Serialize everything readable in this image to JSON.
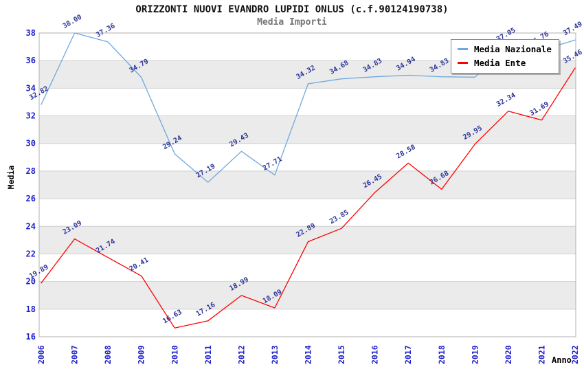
{
  "header": {
    "title": "ORIZZONTI NUOVI EVANDRO LUPIDI ONLUS (c.f.90124190738)",
    "subtitle": "Media Importi"
  },
  "legend": {
    "items": [
      {
        "label": "Media Nazionale",
        "color": "#6fa8dc"
      },
      {
        "label": "Media Ente",
        "color": "#ff0000"
      }
    ]
  },
  "chart_data": {
    "type": "line",
    "title": "ORIZZONTI NUOVI EVANDRO LUPIDI ONLUS (c.f.90124190738)",
    "subtitle": "Media Importi",
    "x": [
      2006,
      2007,
      2008,
      2009,
      2010,
      2011,
      2012,
      2013,
      2014,
      2015,
      2016,
      2017,
      2018,
      2019,
      2020,
      2021,
      2022
    ],
    "series": [
      {
        "name": "Media Nazionale",
        "color": "#6fa8dc",
        "values": [
          32.82,
          38.0,
          37.36,
          34.79,
          29.24,
          27.19,
          29.43,
          27.71,
          34.32,
          34.68,
          34.83,
          34.94,
          34.83,
          34.8,
          37.05,
          36.76,
          37.49
        ]
      },
      {
        "name": "Media Ente",
        "color": "#ff0000",
        "values": [
          19.89,
          23.09,
          21.74,
          20.41,
          16.63,
          17.16,
          18.99,
          18.09,
          22.89,
          23.85,
          26.45,
          28.58,
          26.68,
          29.95,
          32.34,
          31.69,
          35.46
        ]
      }
    ],
    "xlabel": "Anno",
    "ylabel": "Media",
    "ylim": [
      16,
      38
    ],
    "ytick_step": 2,
    "grid": "horizontal",
    "band_fill_intervals": "alternating 2-unit gray bands starting at 18-20",
    "legend_position": "top-right",
    "colors": {
      "band": "#ebebeb",
      "gridline": "#d0d0d0",
      "plot_border": "#b0b0b0",
      "tick_labels": "#2222cc",
      "data_labels": "#2d3597",
      "axis_titles": "#000000"
    }
  }
}
